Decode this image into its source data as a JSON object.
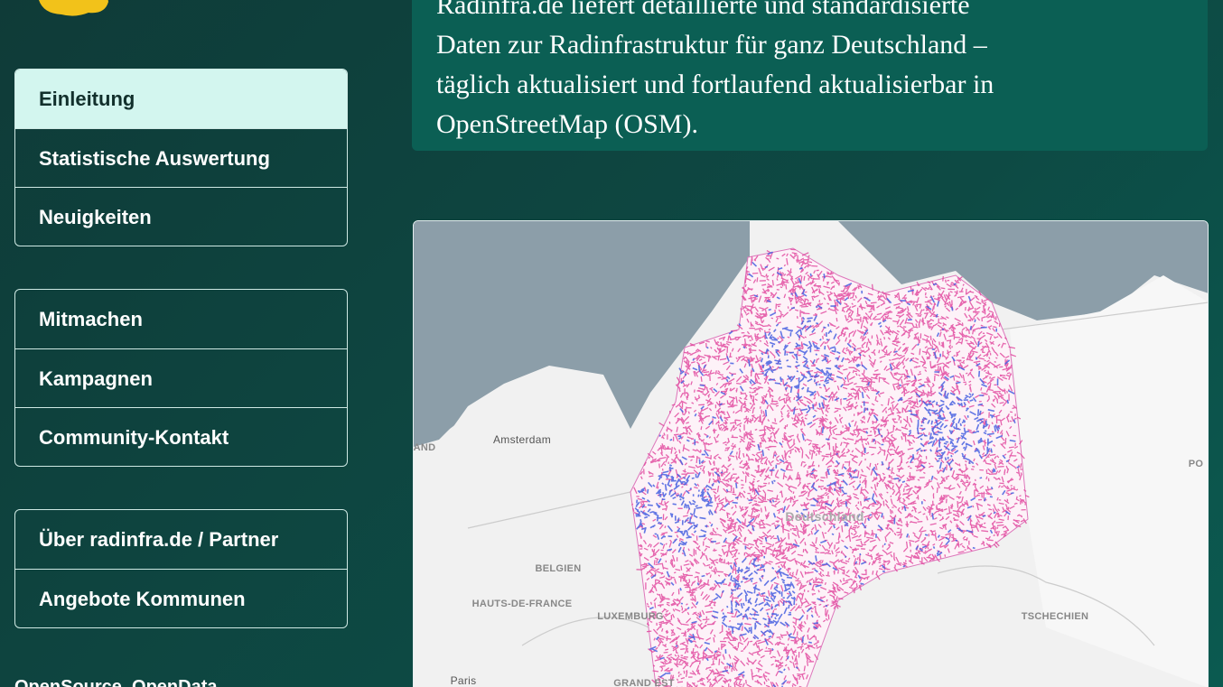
{
  "nav": {
    "groups": [
      [
        "Einleitung",
        "Statistische Auswertung",
        "Neuigkeiten"
      ],
      [
        "Mitmachen",
        "Kampagnen",
        "Community-Kontakt"
      ],
      [
        "Über radinfra.de / Partner",
        "Angebote Kommunen"
      ]
    ]
  },
  "intro": {
    "lines": [
      "Radinfra.de liefert detaillierte und standardisierte",
      "Daten zur Radinfrastruktur für ganz Deutschland –",
      "täglich aktualisiert und fortlaufend aktualisierbar in",
      "OpenStreetMap (OSM)."
    ]
  },
  "map": {
    "labels": [
      "Amsterdam",
      "BELGIEN",
      "HAUTS-DE-FRANCE",
      "LUXEMBURG",
      "Deutschland",
      "TSCHECHIEN",
      "Paris",
      "GRAND EST",
      "AND",
      "PO"
    ]
  },
  "footer": {
    "text": "OpenSource, OpenData"
  }
}
